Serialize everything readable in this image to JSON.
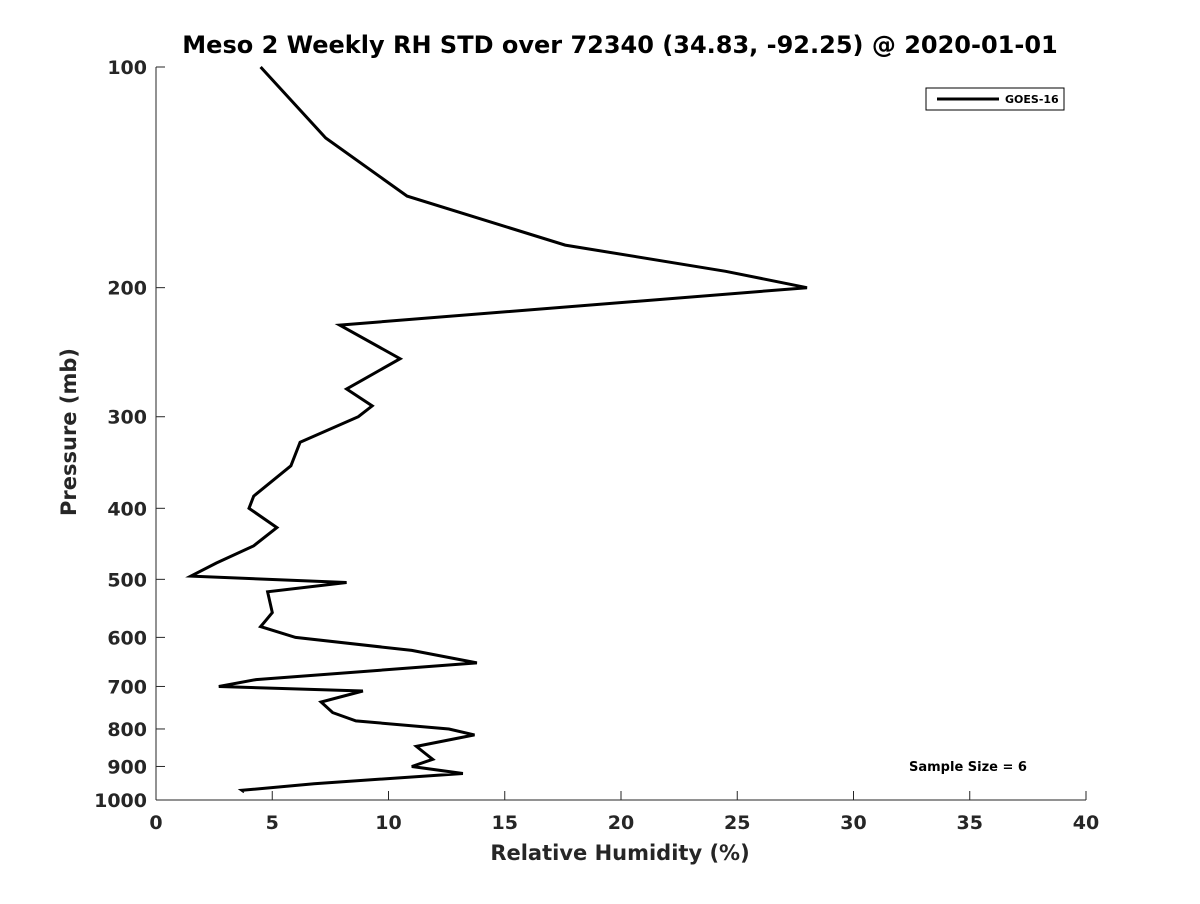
{
  "chart_data": {
    "type": "line",
    "title": "Meso 2 Weekly RH STD over 72340 (34.83, -92.25) @ 2020-01-01",
    "xlabel": "Relative Humidity (%)",
    "ylabel": "Pressure (mb)",
    "xlim": [
      0,
      40
    ],
    "ylim": [
      100,
      1000
    ],
    "y_scale": "log",
    "y_reversed": true,
    "x_ticks": [
      "0",
      "5",
      "10",
      "15",
      "20",
      "25",
      "30",
      "35",
      "40"
    ],
    "y_ticks": [
      "100",
      "200",
      "300",
      "400",
      "500",
      "600",
      "700",
      "800",
      "900",
      "1000"
    ],
    "grid": false,
    "legend_position": "top-right",
    "annotation": "Sample Size = 6",
    "series": [
      {
        "name": "GOES-16",
        "color": "#000000",
        "points": [
          [
            4.5,
            100
          ],
          [
            7.3,
            125
          ],
          [
            10.8,
            150
          ],
          [
            17.6,
            175
          ],
          [
            24.5,
            190
          ],
          [
            28.0,
            200
          ],
          [
            7.9,
            225
          ],
          [
            10.5,
            250
          ],
          [
            8.2,
            275
          ],
          [
            9.3,
            290
          ],
          [
            8.7,
            300
          ],
          [
            6.2,
            325
          ],
          [
            5.8,
            350
          ],
          [
            4.2,
            385
          ],
          [
            4.0,
            400
          ],
          [
            5.2,
            425
          ],
          [
            4.2,
            450
          ],
          [
            2.6,
            475
          ],
          [
            1.5,
            495
          ],
          [
            8.2,
            505
          ],
          [
            4.8,
            520
          ],
          [
            5.0,
            555
          ],
          [
            4.7,
            570
          ],
          [
            4.5,
            580
          ],
          [
            6.0,
            600
          ],
          [
            11.0,
            625
          ],
          [
            13.8,
            650
          ],
          [
            4.3,
            685
          ],
          [
            2.7,
            700
          ],
          [
            8.9,
            710
          ],
          [
            7.1,
            735
          ],
          [
            7.6,
            760
          ],
          [
            8.6,
            780
          ],
          [
            12.6,
            800
          ],
          [
            13.7,
            815
          ],
          [
            11.2,
            845
          ],
          [
            11.5,
            860
          ],
          [
            11.9,
            880
          ],
          [
            11.0,
            900
          ],
          [
            13.2,
            920
          ],
          [
            6.8,
            950
          ],
          [
            3.7,
            970
          ],
          [
            3.8,
            975
          ]
        ]
      }
    ]
  }
}
